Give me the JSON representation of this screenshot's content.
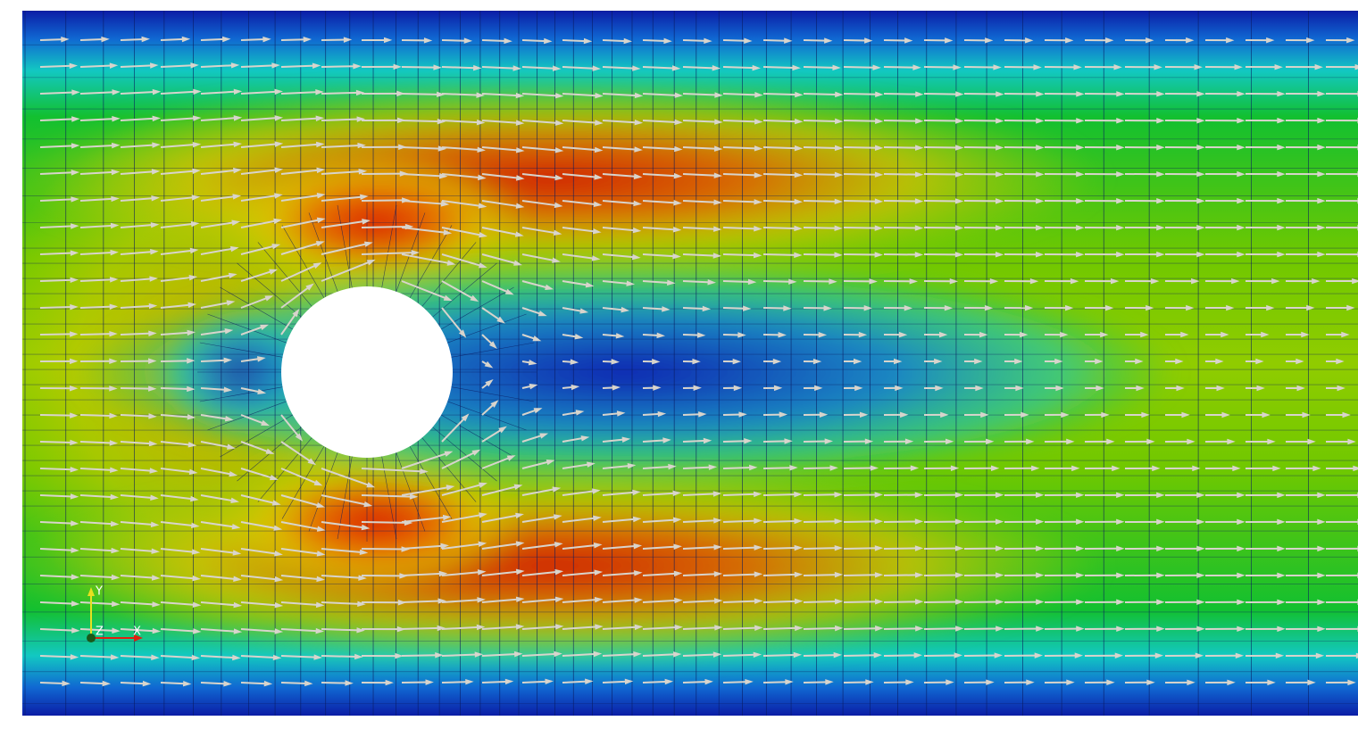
{
  "axes_triad": {
    "y_label": "Y",
    "z_label": "Z",
    "x_label": "X"
  }
}
